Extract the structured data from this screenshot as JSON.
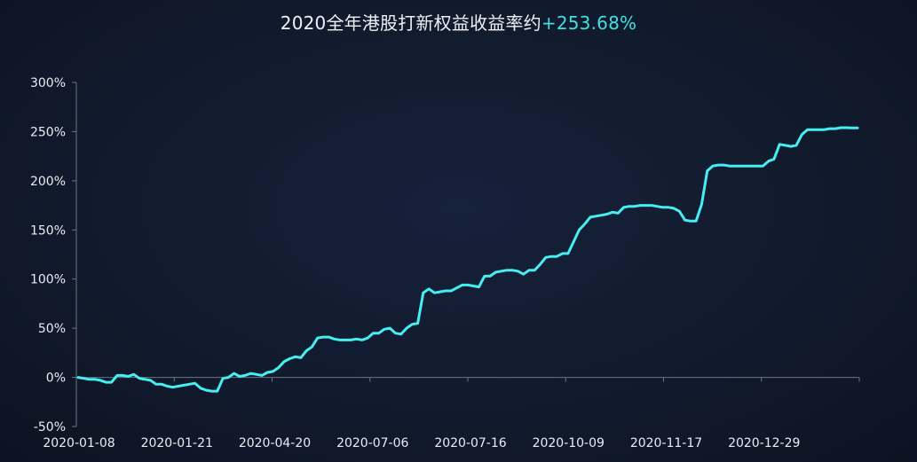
{
  "title": {
    "text": "2020全年港股打新权益收益率约",
    "value": "+253.68%"
  },
  "colors": {
    "background": "#121a2c",
    "line": "#45eef0",
    "axis": "#6b7386",
    "text": "#e9edf3",
    "accent": "#3fe0e3"
  },
  "chart_data": {
    "type": "line",
    "title": "2020全年港股打新权益收益率约+253.68%",
    "xlabel": "",
    "ylabel": "",
    "ylim": [
      -50,
      300
    ],
    "yticks": [
      -50,
      0,
      50,
      100,
      150,
      200,
      250,
      300
    ],
    "ytick_labels": [
      "-50%",
      "0%",
      "50%",
      "100%",
      "150%",
      "200%",
      "250%",
      "300%"
    ],
    "xtick_labels": [
      "2020-01-08",
      "2020-01-21",
      "2020-04-20",
      "2020-07-06",
      "2020-07-16",
      "2020-10-09",
      "2020-11-17",
      "2020-12-29"
    ],
    "grid": false,
    "series": [
      {
        "values": [
          0,
          -1,
          -2,
          -2,
          -3,
          -5,
          -5,
          2,
          2,
          1,
          3,
          -1,
          -2,
          -3,
          -7,
          -7,
          -9,
          -10,
          -9,
          -8,
          -7,
          -6,
          -11,
          -13,
          -14,
          -14,
          -1,
          0,
          4,
          1,
          2,
          4,
          3,
          2,
          5,
          6,
          10,
          16,
          19,
          21,
          20,
          27,
          31,
          40,
          41,
          41,
          39,
          38,
          38,
          38,
          39,
          38,
          40,
          45,
          45,
          49,
          50,
          45,
          44,
          50,
          54,
          55,
          86,
          90,
          86,
          87,
          88,
          88,
          91,
          94,
          94,
          93,
          92,
          103,
          103,
          107,
          108,
          109,
          109,
          108,
          105,
          109,
          109,
          115,
          122,
          123,
          123,
          126,
          126,
          138,
          150,
          156,
          163,
          164,
          165,
          166,
          168,
          167,
          173,
          174,
          174,
          175,
          175,
          175,
          174,
          173,
          173,
          172,
          169,
          160,
          159,
          159,
          176,
          210,
          215,
          216,
          216,
          215,
          215,
          215,
          215,
          215,
          215,
          215,
          220,
          222,
          237,
          236,
          235,
          236,
          247,
          252,
          252,
          252,
          252,
          253,
          253,
          254,
          254,
          253.68,
          253.68
        ]
      }
    ]
  }
}
